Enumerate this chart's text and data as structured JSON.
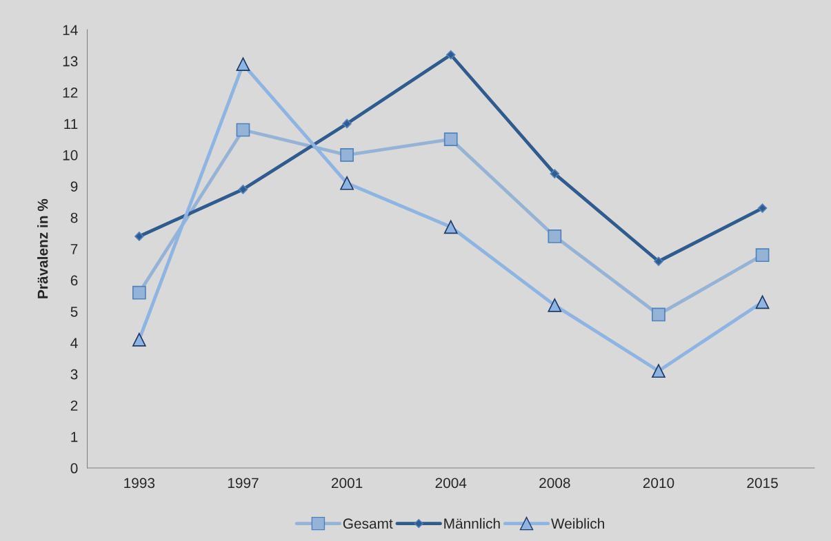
{
  "chart_data": {
    "type": "line",
    "ylabel": "Prävalenz in %",
    "categories": [
      "1993",
      "1997",
      "2001",
      "2004",
      "2008",
      "2010",
      "2015"
    ],
    "series": [
      {
        "name": "Gesamt",
        "color": "#95b3d7",
        "marker": "square",
        "values": [
          5.6,
          10.8,
          10.0,
          10.5,
          7.4,
          4.9,
          6.8
        ]
      },
      {
        "name": "Männlich",
        "color": "#2f5b8f",
        "marker": "diamond",
        "values": [
          7.4,
          8.9,
          11.0,
          13.2,
          9.4,
          6.6,
          8.3
        ]
      },
      {
        "name": "Weiblich",
        "color": "#8db4e2",
        "marker": "triangle",
        "values": [
          4.1,
          12.9,
          9.1,
          7.7,
          5.2,
          3.1,
          5.3
        ]
      }
    ],
    "ylim": [
      0,
      14
    ],
    "yticks": [
      0,
      1,
      2,
      3,
      4,
      5,
      6,
      7,
      8,
      9,
      10,
      11,
      12,
      13,
      14
    ],
    "grid": false,
    "legend": "bottom"
  }
}
